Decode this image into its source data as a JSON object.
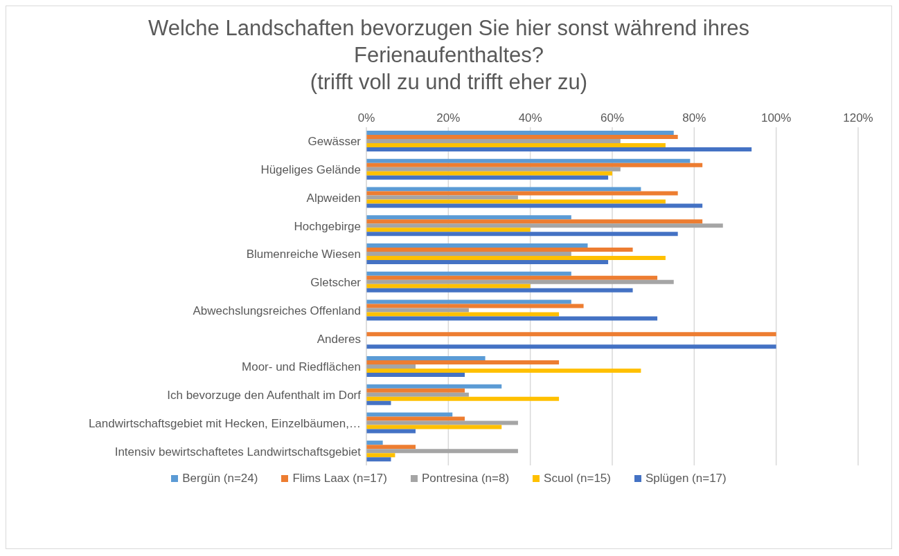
{
  "chart_data": {
    "type": "bar",
    "orientation": "horizontal",
    "title": "Welche Landschaften bevorzugen Sie hier sonst während ihres Ferienaufenthaltes?",
    "subtitle": "(trifft voll zu und trifft eher zu)",
    "categories": [
      "Gewässer",
      "Hügeliges Gelände",
      "Alpweiden",
      "Hochgebirge",
      "Blumenreiche Wiesen",
      "Gletscher",
      "Abwechslungsreiches Offenland",
      "Anderes",
      "Moor- und Riedflächen",
      "Ich bevorzuge den Aufenthalt im Dorf",
      "Landwirtschaftsgebiet mit Hecken, Einzelbäumen,…",
      "Intensiv bewirtschaftetes Landwirtschaftsgebiet"
    ],
    "series": [
      {
        "name": "Bergün (n=24)",
        "color": "#5b9bd5",
        "values": [
          75,
          79,
          67,
          50,
          54,
          50,
          50,
          null,
          29,
          33,
          21,
          4
        ]
      },
      {
        "name": "Flims Laax (n=17)",
        "color": "#ed7d31",
        "values": [
          76,
          82,
          76,
          82,
          65,
          71,
          53,
          100,
          47,
          24,
          24,
          12
        ]
      },
      {
        "name": "Pontresina (n=8)",
        "color": "#a5a5a5",
        "values": [
          62,
          62,
          37,
          87,
          50,
          75,
          25,
          null,
          12,
          25,
          37,
          37
        ]
      },
      {
        "name": "Scuol (n=15)",
        "color": "#ffc000",
        "values": [
          73,
          60,
          73,
          40,
          73,
          40,
          47,
          null,
          67,
          47,
          33,
          7
        ]
      },
      {
        "name": "Splügen (n=17)",
        "color": "#4472c4",
        "values": [
          94,
          59,
          82,
          76,
          59,
          65,
          71,
          100,
          24,
          6,
          12,
          6
        ]
      }
    ],
    "xlim": [
      0,
      120
    ],
    "xticks": [
      {
        "value": 0,
        "label": "0%"
      },
      {
        "value": 20,
        "label": "20%"
      },
      {
        "value": 40,
        "label": "40%"
      },
      {
        "value": 60,
        "label": "60%"
      },
      {
        "value": 80,
        "label": "80%"
      },
      {
        "value": 100,
        "label": "100%"
      },
      {
        "value": 120,
        "label": "120%"
      }
    ],
    "grid": "x",
    "legend": "bottom"
  }
}
